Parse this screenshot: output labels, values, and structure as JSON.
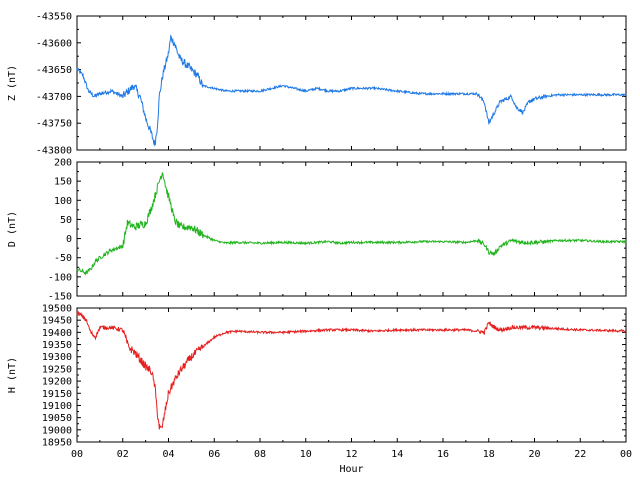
{
  "chart_data": [
    {
      "type": "line",
      "ylabel": "Z (nT)",
      "ylim": [
        -43800,
        -43550
      ],
      "yticks": [
        -43800,
        -43750,
        -43700,
        -43650,
        -43600,
        -43550
      ],
      "series": [
        {
          "color": "#1e78e6",
          "x": [
            0,
            0.25,
            0.5,
            0.75,
            1,
            1.5,
            2,
            2.5,
            2.75,
            3,
            3.25,
            3.4,
            3.5,
            3.6,
            3.75,
            4,
            4.1,
            4.25,
            4.5,
            4.75,
            5,
            5.25,
            5.5,
            6,
            6.5,
            7,
            8,
            9,
            9.5,
            10,
            10.5,
            11,
            11.5,
            12,
            13,
            14,
            15,
            16,
            17,
            17.5,
            17.8,
            18,
            18.25,
            18.5,
            19,
            19.2,
            19.5,
            19.75,
            20,
            20.5,
            21,
            22,
            23,
            24
          ],
          "y": [
            -43650,
            -43660,
            -43690,
            -43700,
            -43695,
            -43690,
            -43700,
            -43680,
            -43700,
            -43740,
            -43770,
            -43790,
            -43760,
            -43700,
            -43660,
            -43620,
            -43590,
            -43600,
            -43630,
            -43640,
            -43650,
            -43660,
            -43680,
            -43685,
            -43690,
            -43690,
            -43690,
            -43680,
            -43685,
            -43690,
            -43685,
            -43690,
            -43690,
            -43685,
            -43685,
            -43690,
            -43695,
            -43695,
            -43695,
            -43695,
            -43710,
            -43750,
            -43730,
            -43710,
            -43700,
            -43720,
            -43730,
            -43710,
            -43705,
            -43700,
            -43697,
            -43697,
            -43697,
            -43697
          ]
        }
      ]
    },
    {
      "type": "line",
      "ylabel": "D (nT)",
      "ylim": [
        -150,
        200
      ],
      "yticks": [
        -150,
        -100,
        -50,
        0,
        50,
        100,
        150,
        200
      ],
      "series": [
        {
          "color": "#22b41e",
          "x": [
            0,
            0.2,
            0.4,
            0.6,
            0.8,
            1,
            1.5,
            2,
            2.2,
            2.5,
            3,
            3.25,
            3.5,
            3.65,
            3.75,
            3.9,
            4.1,
            4.25,
            4.5,
            5,
            5.5,
            6,
            6.5,
            7,
            8,
            9,
            10,
            11,
            11.5,
            12,
            13,
            14,
            15,
            16,
            17,
            17.5,
            17.8,
            18,
            18.25,
            18.5,
            19,
            19.5,
            20,
            20.5,
            21,
            22,
            23,
            24
          ],
          "y": [
            -80,
            -85,
            -90,
            -80,
            -60,
            -50,
            -30,
            -20,
            40,
            30,
            40,
            80,
            130,
            160,
            175,
            130,
            90,
            50,
            30,
            30,
            10,
            -5,
            -12,
            -10,
            -12,
            -10,
            -12,
            -8,
            -12,
            -10,
            -10,
            -10,
            -8,
            -8,
            -10,
            -5,
            -15,
            -35,
            -40,
            -20,
            -5,
            -10,
            -10,
            -8,
            -5,
            -5,
            -8,
            -8
          ]
        }
      ]
    },
    {
      "type": "line",
      "ylabel": "H (nT)",
      "xlabel": "Hour",
      "ylim": [
        18950,
        19500
      ],
      "yticks": [
        18950,
        19000,
        19050,
        19100,
        19150,
        19200,
        19250,
        19300,
        19350,
        19400,
        19450,
        19500
      ],
      "xlim": [
        0,
        24
      ],
      "xticks": [
        "00",
        "02",
        "04",
        "06",
        "08",
        "10",
        "12",
        "14",
        "16",
        "18",
        "20",
        "22",
        "00"
      ],
      "series": [
        {
          "color": "#e61e1e",
          "x": [
            0,
            0.2,
            0.4,
            0.6,
            0.8,
            1,
            1.5,
            2,
            2.25,
            2.5,
            2.75,
            3,
            3.25,
            3.4,
            3.5,
            3.6,
            3.7,
            3.8,
            4,
            4.25,
            4.5,
            5,
            5.5,
            6,
            6.5,
            7,
            8,
            9,
            10,
            11,
            12,
            13,
            14,
            15,
            16,
            17,
            17.5,
            17.8,
            18,
            18.25,
            18.5,
            19,
            20,
            21,
            22,
            23,
            24
          ],
          "y": [
            19480,
            19470,
            19450,
            19400,
            19380,
            19420,
            19420,
            19410,
            19340,
            19320,
            19290,
            19260,
            19240,
            19180,
            19080,
            19010,
            19000,
            19050,
            19150,
            19200,
            19240,
            19300,
            19340,
            19380,
            19400,
            19405,
            19400,
            19400,
            19405,
            19410,
            19410,
            19405,
            19410,
            19410,
            19410,
            19410,
            19405,
            19400,
            19440,
            19420,
            19410,
            19420,
            19420,
            19415,
            19410,
            19408,
            19405
          ]
        }
      ]
    }
  ]
}
